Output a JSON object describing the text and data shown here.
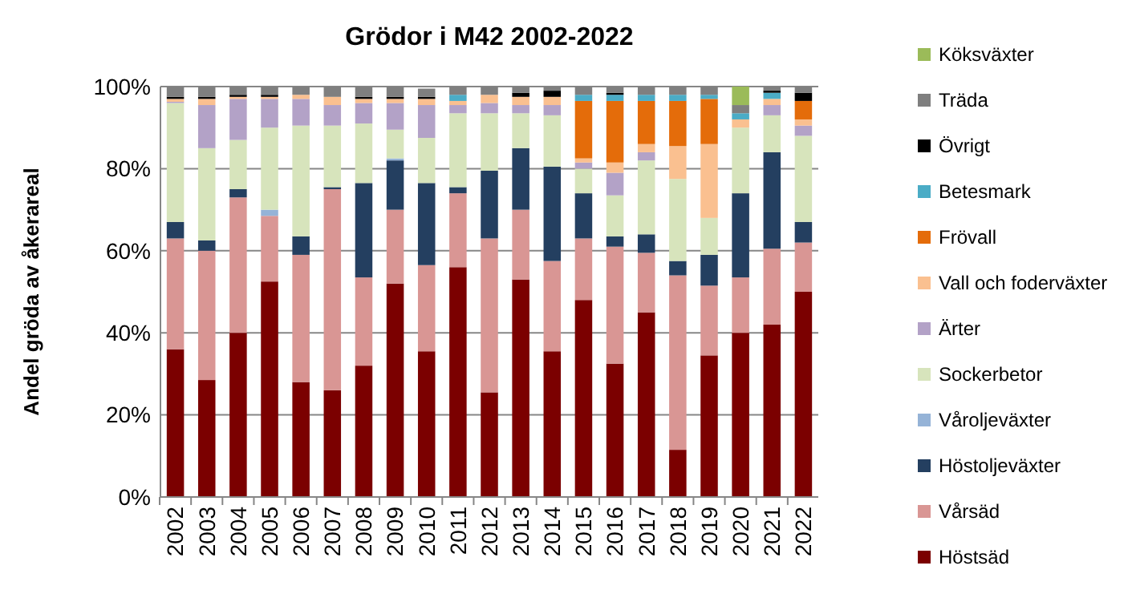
{
  "chart_data": {
    "type": "bar",
    "stacked": true,
    "title": "Grödor i M42 2002-2022",
    "ylabel": "Andel gröda av åkerareal",
    "categories": [
      "2002",
      "2003",
      "2004",
      "2005",
      "2006",
      "2007",
      "2008",
      "2009",
      "2010",
      "2011",
      "2012",
      "2013",
      "2014",
      "2015",
      "2016",
      "2017",
      "2018",
      "2019",
      "2020",
      "2021",
      "2022"
    ],
    "ylim": [
      0,
      100
    ],
    "yticks": [
      {
        "value": 0,
        "label": "0%"
      },
      {
        "value": 20,
        "label": "20%"
      },
      {
        "value": 40,
        "label": "40%"
      },
      {
        "value": 60,
        "label": "60%"
      },
      {
        "value": 80,
        "label": "80%"
      },
      {
        "value": 100,
        "label": "100%"
      }
    ],
    "grid": "y",
    "legend": "right",
    "series": [
      {
        "name": "Höstsäd",
        "color": "#7b0000",
        "values": [
          36,
          28.5,
          40,
          52.5,
          28,
          26,
          32,
          52,
          35.5,
          56,
          25.5,
          53,
          35.5,
          48,
          32.5,
          45,
          11.5,
          34.5,
          40,
          42,
          50
        ]
      },
      {
        "name": "Vårsäd",
        "color": "#d99694",
        "values": [
          27,
          31.5,
          33,
          16,
          31,
          49,
          21.5,
          18,
          21,
          18,
          37.5,
          17,
          22,
          15,
          28.5,
          14.5,
          42.5,
          17,
          13.5,
          18.5,
          12
        ]
      },
      {
        "name": "Höstoljeväxter",
        "color": "#243f60",
        "values": [
          4,
          2.5,
          2,
          0,
          4.5,
          0.5,
          23,
          12,
          20,
          1.5,
          16.5,
          15,
          23,
          11,
          2.5,
          4.5,
          3.5,
          7.5,
          20.5,
          23.5,
          5
        ]
      },
      {
        "name": "Våroljeväxter",
        "color": "#95b3d7",
        "values": [
          0,
          0,
          0,
          1.5,
          0,
          0,
          0,
          0.5,
          0,
          0,
          0,
          0,
          0,
          0,
          0,
          0,
          0,
          0,
          0,
          0,
          0
        ]
      },
      {
        "name": "Sockerbetor",
        "color": "#d7e4bc",
        "values": [
          29,
          22.5,
          12,
          20,
          27,
          15,
          14.5,
          7,
          11,
          18,
          14,
          8.5,
          12.5,
          6,
          10,
          18,
          20,
          9,
          16,
          9,
          21
        ]
      },
      {
        "name": "Ärter",
        "color": "#b3a2c7",
        "values": [
          0.3,
          10.5,
          10,
          7,
          6.5,
          5,
          5,
          6.5,
          8,
          2,
          2.5,
          2,
          2.5,
          1.5,
          5.5,
          2,
          0,
          0,
          0,
          2.5,
          2.5
        ]
      },
      {
        "name": "Vall och foderväxter",
        "color": "#fac090",
        "values": [
          0.7,
          1.5,
          0.5,
          0.5,
          1,
          2,
          1,
          1,
          1.5,
          1,
          2,
          2,
          2,
          1,
          2.5,
          2,
          8,
          18,
          2,
          1.5,
          1.5
        ]
      },
      {
        "name": "Frövall",
        "color": "#e46c0a",
        "values": [
          0,
          0,
          0,
          0,
          0,
          0,
          0,
          0,
          0,
          0,
          0,
          0,
          0,
          14,
          15,
          10.5,
          11,
          11,
          0,
          0,
          4.5
        ]
      },
      {
        "name": "Betesmark",
        "color": "#4bacc6",
        "values": [
          0,
          0,
          0,
          0,
          0,
          0,
          0,
          0,
          0,
          1.5,
          0,
          0,
          0,
          1.5,
          1.5,
          1.5,
          1.5,
          1,
          1.5,
          1.5,
          0
        ]
      },
      {
        "name": "Övrigt",
        "color": "#000000",
        "values": [
          0.5,
          0.5,
          0.5,
          0.5,
          0,
          0,
          0.5,
          0.5,
          0.5,
          0,
          0,
          1,
          1.5,
          0,
          0.5,
          0,
          0,
          0,
          0,
          0.5,
          2
        ]
      },
      {
        "name": "Träda",
        "color": "#7f7f7f",
        "values": [
          2.5,
          2.5,
          2,
          2,
          2,
          2.5,
          2.5,
          2.5,
          2,
          2,
          2,
          1.5,
          1,
          2,
          1.5,
          2,
          2,
          2,
          2,
          1,
          1.5
        ]
      },
      {
        "name": "Köksväxter",
        "color": "#9bbb59",
        "values": [
          0,
          0,
          0,
          0,
          0,
          0,
          0,
          0,
          0,
          0,
          0,
          0,
          0,
          0,
          0,
          0,
          0,
          0,
          4.5,
          0,
          0
        ]
      }
    ]
  }
}
